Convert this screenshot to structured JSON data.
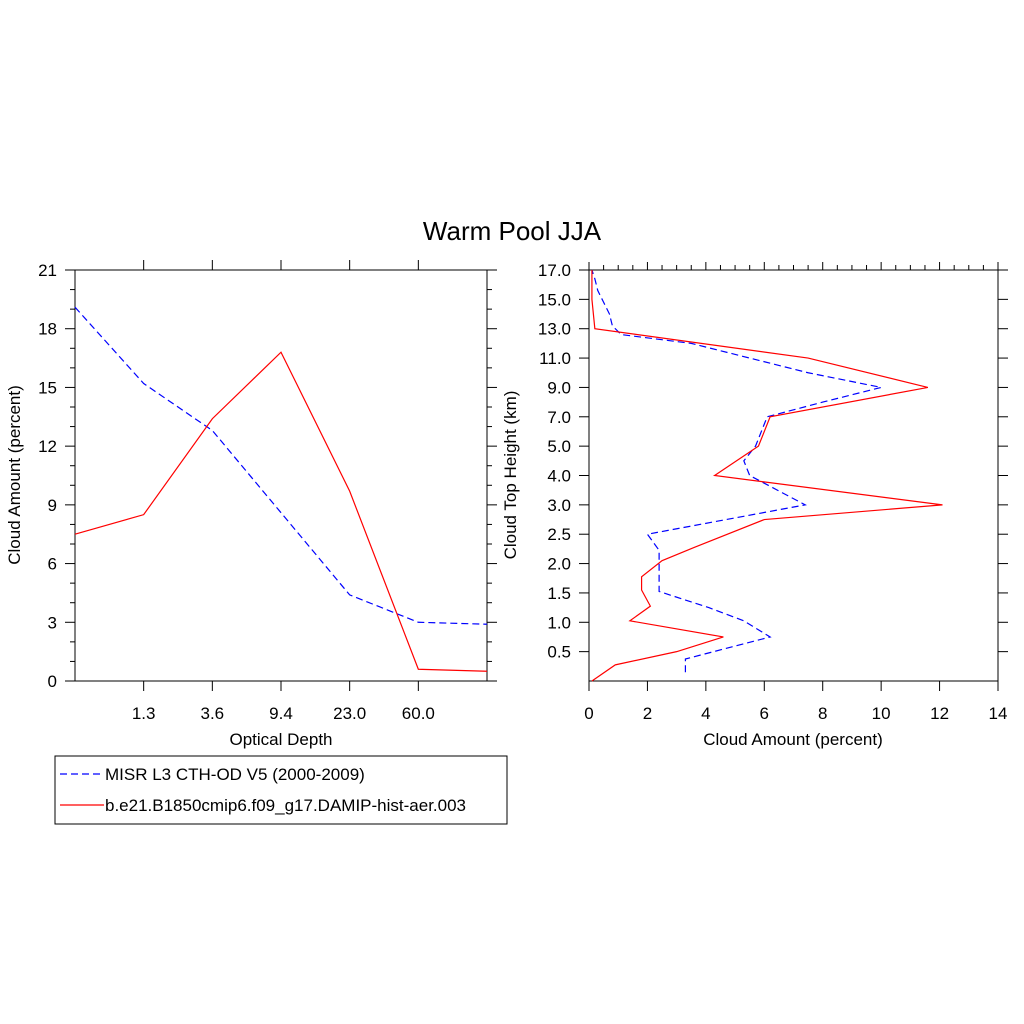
{
  "figure": {
    "title": "Warm Pool JJA"
  },
  "legend": {
    "entries": [
      {
        "label": "MISR L3 CTH-OD V5 (2000-2009)",
        "color": "#0000ff",
        "dash": "dashed"
      },
      {
        "label": "b.e21.B1850cmip6.f09_g17.DAMIP-hist-aer.003",
        "color": "#ff0000",
        "dash": "solid"
      }
    ]
  },
  "chart_data": [
    {
      "type": "line",
      "xlabel": "Optical Depth",
      "ylabel": "Cloud Amount (percent)",
      "ylim": [
        0,
        21
      ],
      "yticks": [
        0,
        3,
        6,
        9,
        12,
        15,
        18,
        21
      ],
      "x_tick_labels": [
        "1.3",
        "3.6",
        "9.4",
        "23.0",
        "60.0"
      ],
      "x_positions": [
        0,
        1,
        2,
        3,
        4,
        5,
        6
      ],
      "series": [
        {
          "name": "MISR L3 CTH-OD V5 (2000-2009)",
          "color": "#0000ff",
          "dash": "dashed",
          "values": [
            19.1,
            15.2,
            12.8,
            8.6,
            4.4,
            3.0,
            2.9
          ]
        },
        {
          "name": "b.e21.B1850cmip6.f09_g17.DAMIP-hist-aer.003",
          "color": "#ff0000",
          "dash": "solid",
          "values": [
            7.5,
            8.5,
            13.4,
            16.8,
            9.7,
            0.6,
            0.5
          ]
        }
      ]
    },
    {
      "type": "line",
      "xlabel": "Cloud Amount (percent)",
      "ylabel": "Cloud Top Height (km)",
      "xlim": [
        0,
        14
      ],
      "xticks": [
        0,
        2,
        4,
        6,
        8,
        10,
        12,
        14
      ],
      "y_tick_labels": [
        "0.5",
        "1.0",
        "1.5",
        "2.0",
        "2.5",
        "3.0",
        "4.0",
        "5.0",
        "7.0",
        "9.0",
        "11.0",
        "13.0",
        "15.0",
        "17.0"
      ],
      "series": [
        {
          "name": "MISR L3 CTH-OD V5 (2000-2009)",
          "color": "#0000ff",
          "dash": "dashed",
          "height_index": [
            0.3,
            0.75,
            1.5,
            2.05,
            2.5,
            3.05,
            3.55,
            4.45,
            5.0,
            6.0,
            7.0,
            7.5,
            8.0,
            8.5,
            9.0,
            9.5,
            10.0,
            10.5,
            11.5,
            11.8,
            12.1,
            12.5,
            12.9,
            13.3,
            13.7,
            14.0
          ],
          "values": [
            3.3,
            3.3,
            6.2,
            5.3,
            4.1,
            2.4,
            2.4,
            2.4,
            2.0,
            7.4,
            5.5,
            5.3,
            5.7,
            5.9,
            6.1,
            8.0,
            10.0,
            7.5,
            3.5,
            1.1,
            0.8,
            0.7,
            0.5,
            0.3,
            0.2,
            0.1
          ]
        },
        {
          "name": "b.e21.B1850cmip6.f09_g17.DAMIP-hist-aer.003",
          "color": "#ff0000",
          "dash": "solid",
          "height_index": [
            0,
            0.55,
            1.0,
            1.5,
            2.05,
            2.55,
            3.1,
            3.55,
            4.1,
            4.55,
            5.5,
            6.0,
            7.0,
            8.0,
            9.0,
            10.0,
            11.0,
            12.0,
            13.0,
            14.0
          ],
          "values": [
            0.1,
            0.9,
            3.0,
            4.6,
            1.4,
            2.1,
            1.8,
            1.8,
            2.5,
            3.6,
            6.0,
            12.1,
            4.3,
            5.8,
            6.2,
            11.6,
            7.5,
            0.2,
            0.1,
            0.1
          ]
        }
      ]
    }
  ]
}
